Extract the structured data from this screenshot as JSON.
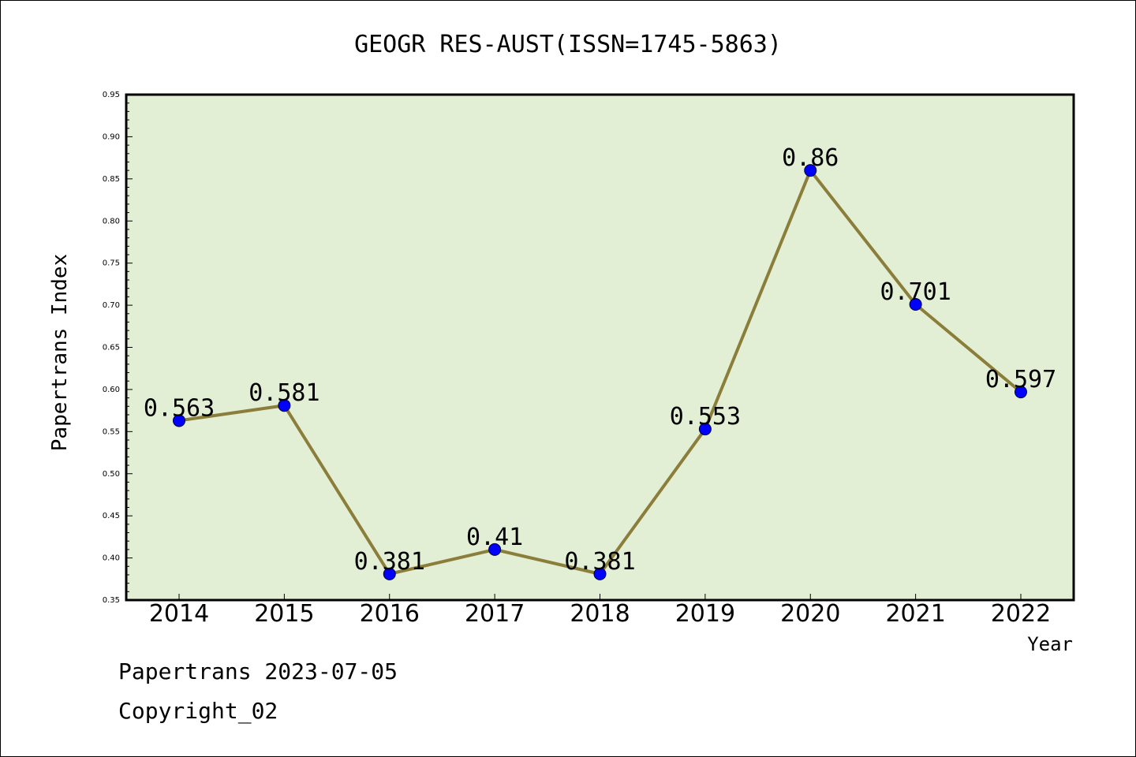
{
  "chart_data": {
    "type": "line",
    "title": "GEOGR RES-AUST(ISSN=1745-5863)",
    "xlabel": "Year",
    "ylabel": "Papertrans Index",
    "categories": [
      "2014",
      "2015",
      "2016",
      "2017",
      "2018",
      "2019",
      "2020",
      "2021",
      "2022"
    ],
    "values": [
      0.563,
      0.581,
      0.381,
      0.41,
      0.381,
      0.553,
      0.86,
      0.701,
      0.597
    ],
    "data_labels": [
      "0.563",
      "0.581",
      "0.381",
      "0.41",
      "0.381",
      "0.553",
      "0.86",
      "0.701",
      "0.597"
    ],
    "ylim": [
      0.35,
      0.95
    ],
    "yticks": [
      "0.35",
      "0.40",
      "0.45",
      "0.50",
      "0.55",
      "0.60",
      "0.65",
      "0.70",
      "0.75",
      "0.80",
      "0.85",
      "0.90",
      "0.95"
    ],
    "grid": false,
    "colors": {
      "plot_background": "#e2efd5",
      "line": "#8b7d3a",
      "marker": "#0000ff"
    }
  },
  "footer": {
    "line1": "Papertrans 2023-07-05",
    "line2": "Copyright_02"
  }
}
